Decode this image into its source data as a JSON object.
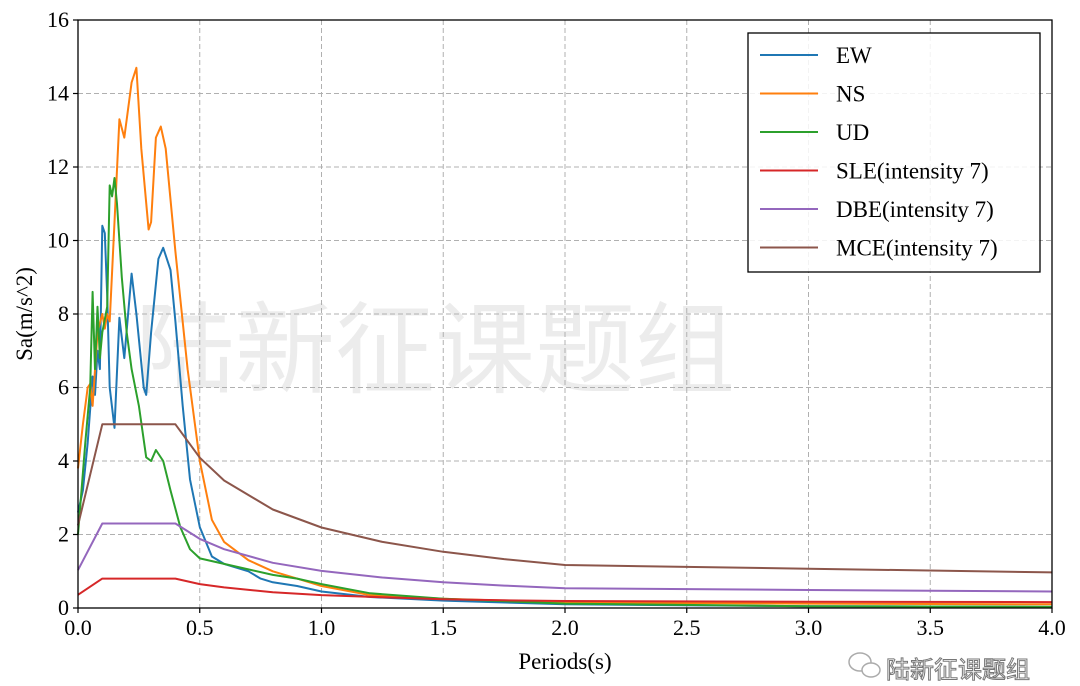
{
  "chart_data": {
    "type": "line",
    "title": "",
    "xlabel": "Periods(s)",
    "ylabel": "Sa(m/s^2)",
    "xlim": [
      0,
      4.0
    ],
    "ylim": [
      0,
      16
    ],
    "xticks": [
      "0.0",
      "0.5",
      "1.0",
      "1.5",
      "2.0",
      "2.5",
      "3.0",
      "3.5",
      "4.0"
    ],
    "yticks": [
      "0",
      "2",
      "4",
      "6",
      "8",
      "10",
      "12",
      "14",
      "16"
    ],
    "grid": true,
    "legend_position": "top-right",
    "series": [
      {
        "name": "EW",
        "color": "#1f77b4",
        "x": [
          0,
          0.02,
          0.04,
          0.06,
          0.07,
          0.08,
          0.09,
          0.1,
          0.11,
          0.12,
          0.13,
          0.15,
          0.17,
          0.19,
          0.22,
          0.24,
          0.27,
          0.28,
          0.3,
          0.33,
          0.35,
          0.38,
          0.4,
          0.43,
          0.46,
          0.5,
          0.55,
          0.6,
          0.7,
          0.75,
          0.8,
          0.9,
          1.0,
          1.2,
          1.5,
          2.0,
          3.0,
          4.0
        ],
        "y": [
          2.6,
          3.2,
          4.5,
          6.3,
          5.8,
          7.0,
          6.5,
          10.4,
          10.2,
          8.5,
          6.0,
          4.9,
          7.9,
          6.8,
          9.1,
          8.0,
          6.0,
          5.8,
          7.5,
          9.5,
          9.8,
          9.2,
          7.8,
          5.5,
          3.5,
          2.2,
          1.4,
          1.2,
          1.0,
          0.8,
          0.7,
          0.6,
          0.45,
          0.3,
          0.2,
          0.1,
          0.05,
          0.03
        ]
      },
      {
        "name": "NS",
        "color": "#ff7f0e",
        "x": [
          0,
          0.02,
          0.04,
          0.05,
          0.06,
          0.08,
          0.1,
          0.11,
          0.12,
          0.13,
          0.15,
          0.17,
          0.19,
          0.22,
          0.24,
          0.26,
          0.29,
          0.3,
          0.32,
          0.34,
          0.36,
          0.4,
          0.45,
          0.5,
          0.55,
          0.6,
          0.7,
          0.8,
          0.9,
          1.0,
          1.2,
          1.5,
          2.0,
          3.0,
          4.0
        ],
        "y": [
          3.8,
          5.0,
          6.0,
          6.1,
          5.5,
          7.5,
          8.0,
          7.6,
          8.0,
          7.8,
          10.5,
          13.3,
          12.8,
          14.3,
          14.7,
          12.5,
          10.3,
          10.5,
          12.8,
          13.1,
          12.5,
          9.7,
          6.5,
          4.0,
          2.4,
          1.8,
          1.3,
          1.0,
          0.8,
          0.6,
          0.35,
          0.25,
          0.15,
          0.12,
          0.1
        ]
      },
      {
        "name": "UD",
        "color": "#2ca02c",
        "x": [
          0,
          0.03,
          0.05,
          0.06,
          0.07,
          0.08,
          0.09,
          0.1,
          0.12,
          0.13,
          0.14,
          0.15,
          0.16,
          0.18,
          0.2,
          0.22,
          0.25,
          0.28,
          0.3,
          0.32,
          0.35,
          0.38,
          0.42,
          0.46,
          0.5,
          0.6,
          0.7,
          0.8,
          0.9,
          1.0,
          1.2,
          1.5,
          2.0,
          3.0,
          4.0
        ],
        "y": [
          2.0,
          4.5,
          6.0,
          8.6,
          6.5,
          8.2,
          6.8,
          7.5,
          8.2,
          11.5,
          11.2,
          11.7,
          11.0,
          9.0,
          7.5,
          6.5,
          5.5,
          4.1,
          4.0,
          4.3,
          4.0,
          3.2,
          2.2,
          1.6,
          1.35,
          1.2,
          1.05,
          0.9,
          0.8,
          0.65,
          0.4,
          0.25,
          0.12,
          0.05,
          0.03
        ]
      },
      {
        "name": "SLE(intensity 7)",
        "color": "#d62728",
        "x": [
          0,
          0.1,
          0.4,
          0.5,
          0.6,
          0.8,
          1.0,
          1.25,
          1.5,
          1.75,
          2.0,
          3.0,
          4.0
        ],
        "y": [
          0.36,
          0.8,
          0.8,
          0.65,
          0.56,
          0.43,
          0.35,
          0.29,
          0.24,
          0.21,
          0.19,
          0.17,
          0.16
        ]
      },
      {
        "name": "DBE(intensity 7)",
        "color": "#9467bd",
        "x": [
          0,
          0.1,
          0.4,
          0.5,
          0.6,
          0.8,
          1.0,
          1.25,
          1.5,
          1.75,
          2.0,
          3.0,
          4.0
        ],
        "y": [
          1.03,
          2.3,
          2.3,
          1.88,
          1.6,
          1.23,
          1.01,
          0.83,
          0.7,
          0.61,
          0.54,
          0.49,
          0.45
        ]
      },
      {
        "name": "MCE(intensity 7)",
        "color": "#8c564b",
        "x": [
          0,
          0.1,
          0.4,
          0.5,
          0.6,
          0.8,
          1.0,
          1.25,
          1.5,
          1.75,
          2.0,
          3.0,
          4.0
        ],
        "y": [
          2.25,
          5.0,
          5.0,
          4.09,
          3.47,
          2.68,
          2.19,
          1.8,
          1.53,
          1.33,
          1.17,
          1.07,
          0.97
        ]
      }
    ]
  },
  "watermark": "陆新征课题组",
  "footer_watermark": {
    "icon": "wechat-icon",
    "text": "陆新征课题组"
  }
}
